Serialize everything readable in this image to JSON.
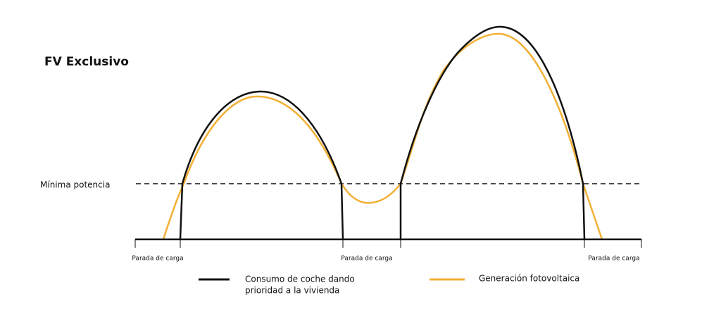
{
  "title": "FV Exclusivo",
  "threshold_label": "Mínima potencia",
  "x_labels": [
    "Parada de carga",
    "Parada de carga",
    "Parada de carga"
  ],
  "legend": [
    {
      "label_lines": [
        "Consumo de coche dando",
        "prioridad a la vivienda"
      ]
    },
    {
      "label": "Generación fotovoltaica"
    }
  ]
}
